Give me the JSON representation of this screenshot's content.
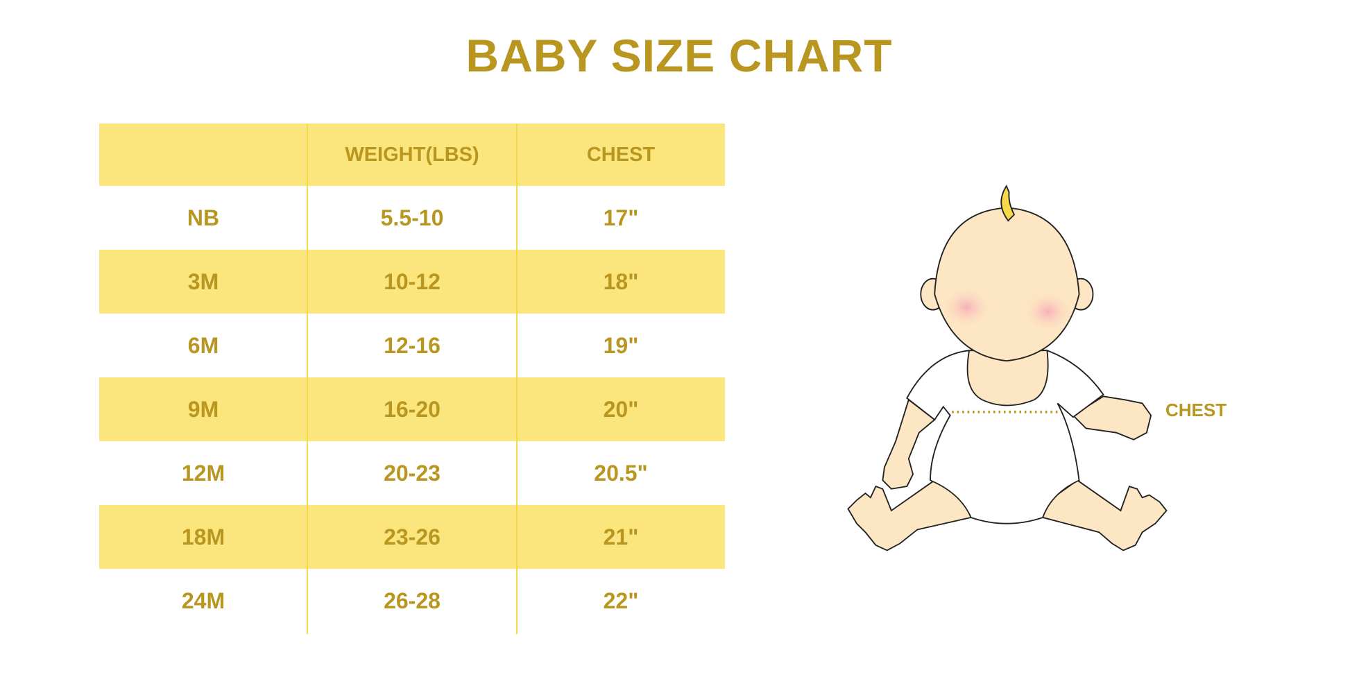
{
  "title": "BABY SIZE CHART",
  "table": {
    "headers": [
      "",
      "WEIGHT(LBS)",
      "CHEST"
    ],
    "rows": [
      [
        "NB",
        "5.5-10",
        "17\""
      ],
      [
        "3M",
        "10-12",
        "18\""
      ],
      [
        "6M",
        "12-16",
        "19\""
      ],
      [
        "9M",
        "16-20",
        "20\""
      ],
      [
        "12M",
        "20-23",
        "20.5\""
      ],
      [
        "18M",
        "23-26",
        "21\""
      ],
      [
        "24M",
        "26-28",
        "22\""
      ]
    ]
  },
  "illustration": {
    "chest_label": "CHEST"
  },
  "colors": {
    "text": "#B8961F",
    "band": "#FBE57D",
    "divider": "#F7D84A",
    "skin": "#FDE6C3"
  }
}
